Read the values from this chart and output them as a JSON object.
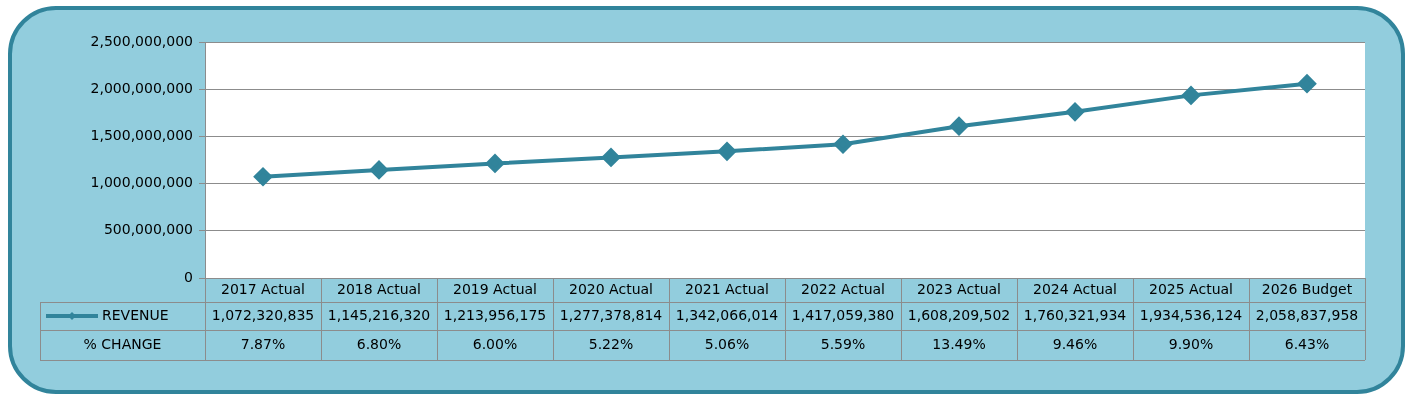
{
  "chart_data": {
    "type": "line",
    "categories": [
      "2017 Actual",
      "2018 Actual",
      "2019 Actual",
      "2020 Actual",
      "2021 Actual",
      "2022 Actual",
      "2023 Actual",
      "2024 Actual",
      "2025 Actual",
      "2026 Budget"
    ],
    "series": [
      {
        "name": "REVENUE",
        "color": "#31849b",
        "values": [
          1072320835,
          1145216320,
          1213956175,
          1277378814,
          1342066014,
          1417059380,
          1608209502,
          1760321934,
          1934536124,
          2058837958
        ],
        "value_labels": [
          "1,072,320,835",
          "1,145,216,320",
          "1,213,956,175",
          "1,277,378,814",
          "1,342,066,014",
          "1,417,059,380",
          "1,608,209,502",
          "1,760,321,934",
          "1,934,536,124",
          "2,058,837,958"
        ]
      }
    ],
    "ylim": [
      0,
      2500000000
    ],
    "yticks": [
      0,
      {
        "value": 500000000,
        "label": "500,000,000"
      },
      {
        "value": 1000000000,
        "label": "1,000,000,000"
      },
      {
        "value": 1500000000,
        "label": "1,500,000,000"
      },
      {
        "value": 2000000000,
        "label": "2,000,000,000"
      },
      {
        "value": 2500000000,
        "label": "2,500,000,000"
      }
    ],
    "grid": "y",
    "legend": "bottom left",
    "marker": "diamond",
    "line_style": "solid",
    "annotations": [
      "% CHANGE",
      "7.87%",
      "6.80%",
      "6.00%",
      "5.22%",
      "5.06%",
      "5.59%",
      "13.49%",
      "9.46%",
      "9.90%",
      "6.43%"
    ]
  }
}
